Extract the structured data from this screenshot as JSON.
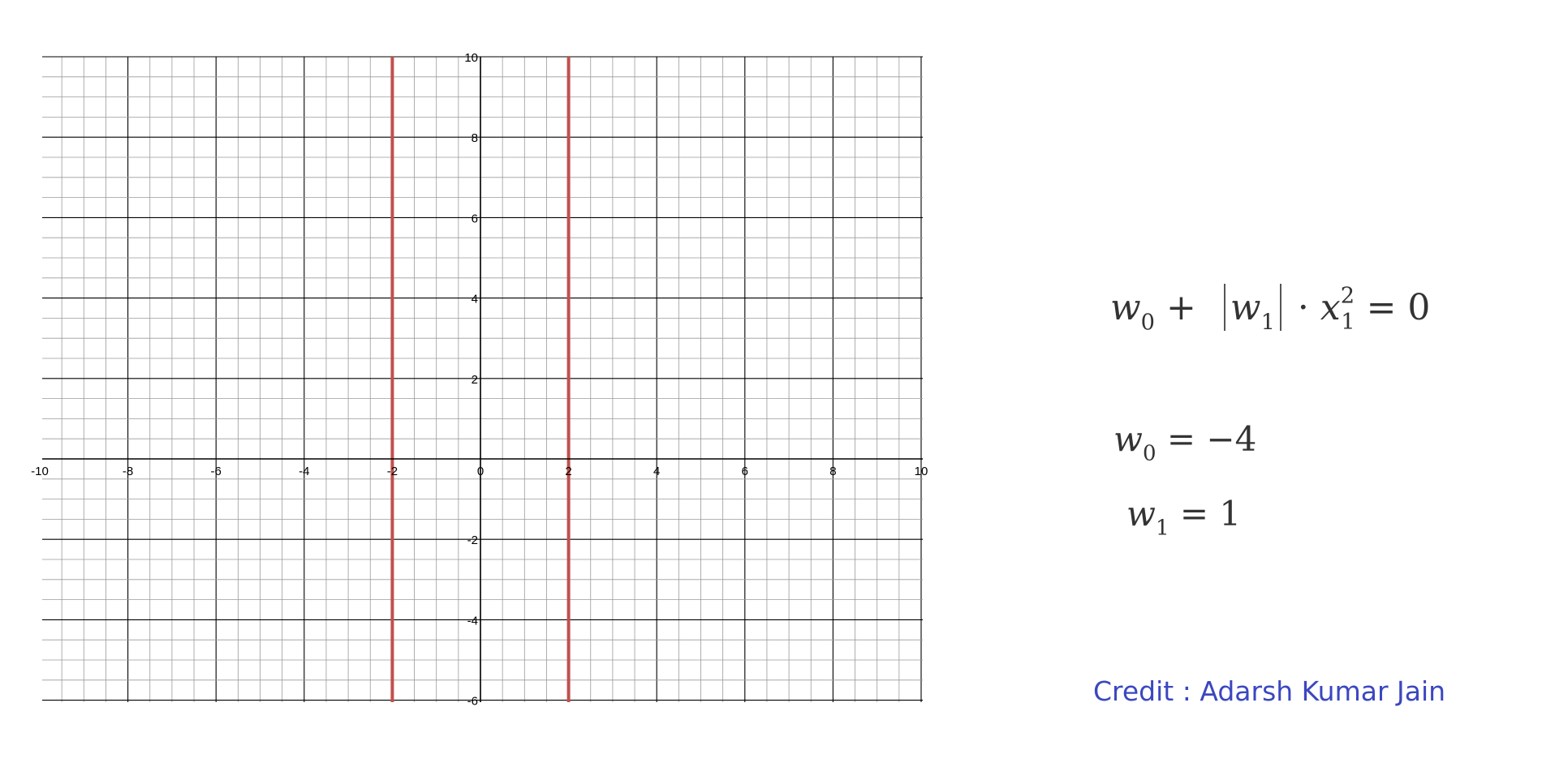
{
  "chart_data": {
    "type": "line",
    "xlim": [
      -10,
      10
    ],
    "ylim": [
      -6,
      10
    ],
    "grid": true,
    "minor_grid_step": 0.5,
    "major_grid_step": 2,
    "x_ticks": [
      -10,
      -8,
      -6,
      -4,
      -2,
      0,
      2,
      4,
      6,
      8,
      10
    ],
    "y_ticks": [
      -6,
      -4,
      -2,
      2,
      4,
      6,
      8,
      10
    ],
    "series": [
      {
        "color": "#c0504d",
        "x": [
          -2,
          -2
        ],
        "y": [
          -6,
          10
        ]
      },
      {
        "color": "#c0504d",
        "x": [
          2,
          2
        ],
        "y": [
          -6,
          10
        ]
      }
    ]
  },
  "equations": {
    "main": {
      "w0_base": "w",
      "w0_sub": "0",
      "plus": "+",
      "w1_base": "w",
      "w1_sub": "1",
      "dot": "·",
      "x_base": "x",
      "x_sub": "1",
      "x_sup": "2",
      "rhs": "= 0"
    },
    "w0": {
      "base": "w",
      "sub": "0",
      "rhs": "= −4"
    },
    "w1": {
      "base": "w",
      "sub": "1",
      "rhs": "= 1"
    }
  },
  "credit": "Credit : Adarsh Kumar Jain",
  "colors": {
    "line": "#c0504d",
    "credit": "#3b47c0",
    "minor_grid": "#9a9a9a",
    "major_grid": "#000000"
  }
}
